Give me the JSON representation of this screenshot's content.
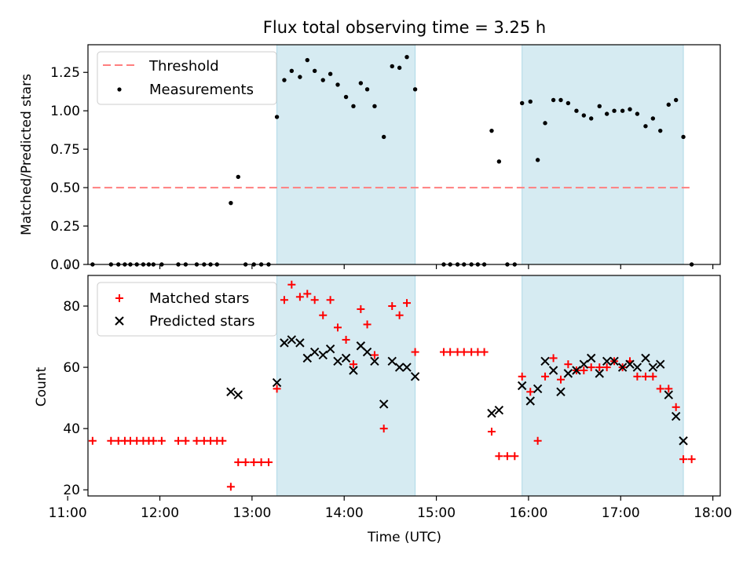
{
  "title": "Flux total observing time = 3.25 h",
  "chart_data": [
    {
      "type": "scatter",
      "panel": "top",
      "ylabel": "Matched/Predicted stars",
      "xlabel": "",
      "xlim": [
        11.22,
        18.08
      ],
      "ylim": [
        0,
        1.43
      ],
      "yticks": [
        "0.00",
        "0.25",
        "0.50",
        "0.75",
        "1.00",
        "1.25"
      ],
      "ytick_values": [
        0,
        0.25,
        0.5,
        0.75,
        1.0,
        1.25
      ],
      "grid": false,
      "legend_position": "upper left",
      "legend": [
        "Threshold",
        "Measurements"
      ],
      "threshold": {
        "name": "Threshold",
        "y": 0.5,
        "x": [
          11.27,
          17.77
        ],
        "color": "#ff7f7f",
        "style": "dashed"
      },
      "shaded_intervals": [
        [
          13.27,
          14.77
        ],
        [
          15.93,
          17.68
        ]
      ],
      "shade_color": "#add8e6",
      "series": [
        {
          "name": "Measurements",
          "color": "#000000",
          "x": [
            11.27,
            11.47,
            11.55,
            11.62,
            11.68,
            11.75,
            11.82,
            11.88,
            11.93,
            12.02,
            12.2,
            12.28,
            12.4,
            12.48,
            12.55,
            12.62,
            12.77,
            12.85,
            12.93,
            13.02,
            13.1,
            13.18,
            13.27,
            13.35,
            13.43,
            13.52,
            13.6,
            13.68,
            13.77,
            13.85,
            13.93,
            14.02,
            14.1,
            14.18,
            14.25,
            14.33,
            14.43,
            14.52,
            14.6,
            14.68,
            14.77,
            15.08,
            15.15,
            15.23,
            15.3,
            15.38,
            15.45,
            15.52,
            15.6,
            15.68,
            15.77,
            15.85,
            15.93,
            16.02,
            16.1,
            16.18,
            16.27,
            16.35,
            16.43,
            16.52,
            16.6,
            16.68,
            16.77,
            16.85,
            16.93,
            17.02,
            17.1,
            17.18,
            17.27,
            17.35,
            17.43,
            17.52,
            17.6,
            17.68,
            17.77
          ],
          "y": [
            0,
            0,
            0,
            0,
            0,
            0,
            0,
            0,
            0,
            0,
            0,
            0,
            0,
            0,
            0,
            0,
            0.4,
            0.57,
            0,
            0,
            0,
            0,
            0.96,
            1.2,
            1.26,
            1.22,
            1.33,
            1.26,
            1.2,
            1.24,
            1.17,
            1.09,
            1.03,
            1.18,
            1.14,
            1.03,
            0.83,
            1.29,
            1.28,
            1.35,
            1.14,
            0,
            0,
            0,
            0,
            0,
            0,
            0,
            0.87,
            0.67,
            0,
            0,
            1.05,
            1.06,
            0.68,
            0.92,
            1.07,
            1.07,
            1.05,
            1.0,
            0.97,
            0.95,
            1.03,
            0.98,
            1.0,
            1.0,
            1.01,
            0.98,
            0.9,
            0.95,
            0.87,
            1.04,
            1.07,
            0.83,
            0
          ]
        }
      ]
    },
    {
      "type": "scatter",
      "panel": "bottom",
      "xlabel": "Time (UTC)",
      "ylabel": "Count",
      "xlim": [
        11.22,
        18.08
      ],
      "ylim": [
        18,
        90
      ],
      "xticks": [
        "11:00",
        "12:00",
        "13:00",
        "14:00",
        "15:00",
        "16:00",
        "17:00",
        "18:00"
      ],
      "xtick_values": [
        11,
        12,
        13,
        14,
        15,
        16,
        17,
        18
      ],
      "yticks": [
        "20",
        "40",
        "60",
        "80"
      ],
      "ytick_values": [
        20,
        40,
        60,
        80
      ],
      "grid": false,
      "legend_position": "upper left",
      "legend": [
        "Matched stars",
        "Predicted stars"
      ],
      "shaded_intervals": [
        [
          13.27,
          14.77
        ],
        [
          15.93,
          17.68
        ]
      ],
      "shade_color": "#add8e6",
      "series": [
        {
          "name": "Matched stars",
          "marker": "+",
          "color": "#ff0000",
          "x": [
            11.27,
            11.47,
            11.55,
            11.62,
            11.68,
            11.75,
            11.82,
            11.88,
            11.93,
            12.02,
            12.2,
            12.28,
            12.4,
            12.48,
            12.55,
            12.62,
            12.68,
            12.77,
            12.85,
            12.93,
            13.02,
            13.1,
            13.18,
            13.27,
            13.35,
            13.43,
            13.52,
            13.6,
            13.68,
            13.77,
            13.85,
            13.93,
            14.02,
            14.1,
            14.18,
            14.25,
            14.33,
            14.43,
            14.52,
            14.6,
            14.68,
            14.77,
            15.08,
            15.15,
            15.23,
            15.3,
            15.38,
            15.45,
            15.52,
            15.6,
            15.68,
            15.77,
            15.85,
            15.93,
            16.02,
            16.1,
            16.18,
            16.27,
            16.35,
            16.43,
            16.52,
            16.6,
            16.68,
            16.77,
            16.85,
            16.93,
            17.02,
            17.1,
            17.18,
            17.27,
            17.35,
            17.43,
            17.52,
            17.6,
            17.68,
            17.77
          ],
          "y": [
            36,
            36,
            36,
            36,
            36,
            36,
            36,
            36,
            36,
            36,
            36,
            36,
            36,
            36,
            36,
            36,
            36,
            21,
            29,
            29,
            29,
            29,
            29,
            53,
            82,
            87,
            83,
            84,
            82,
            77,
            82,
            73,
            69,
            61,
            79,
            74,
            64,
            40,
            80,
            77,
            81,
            65,
            65,
            65,
            65,
            65,
            65,
            65,
            65,
            39,
            31,
            31,
            31,
            57,
            52,
            36,
            57,
            63,
            56,
            61,
            59,
            59,
            60,
            60,
            60,
            62,
            60,
            62,
            57,
            57,
            57,
            53,
            53,
            47,
            30,
            30
          ]
        },
        {
          "name": "Predicted stars",
          "marker": "x",
          "color": "#000000",
          "x": [
            12.77,
            12.85,
            13.27,
            13.35,
            13.43,
            13.52,
            13.6,
            13.68,
            13.77,
            13.85,
            13.93,
            14.02,
            14.1,
            14.18,
            14.25,
            14.33,
            14.43,
            14.52,
            14.6,
            14.68,
            14.77,
            15.6,
            15.68,
            15.93,
            16.02,
            16.1,
            16.18,
            16.27,
            16.35,
            16.43,
            16.52,
            16.6,
            16.68,
            16.77,
            16.85,
            16.93,
            17.02,
            17.1,
            17.18,
            17.27,
            17.35,
            17.43,
            17.52,
            17.6,
            17.68
          ],
          "y": [
            52,
            51,
            55,
            68,
            69,
            68,
            63,
            65,
            64,
            66,
            62,
            63,
            59,
            67,
            65,
            62,
            48,
            62,
            60,
            60,
            57,
            45,
            46,
            54,
            49,
            53,
            62,
            59,
            52,
            58,
            59,
            61,
            63,
            58,
            62,
            62,
            60,
            61,
            60,
            63,
            60,
            61,
            51,
            44,
            36
          ]
        }
      ]
    }
  ]
}
